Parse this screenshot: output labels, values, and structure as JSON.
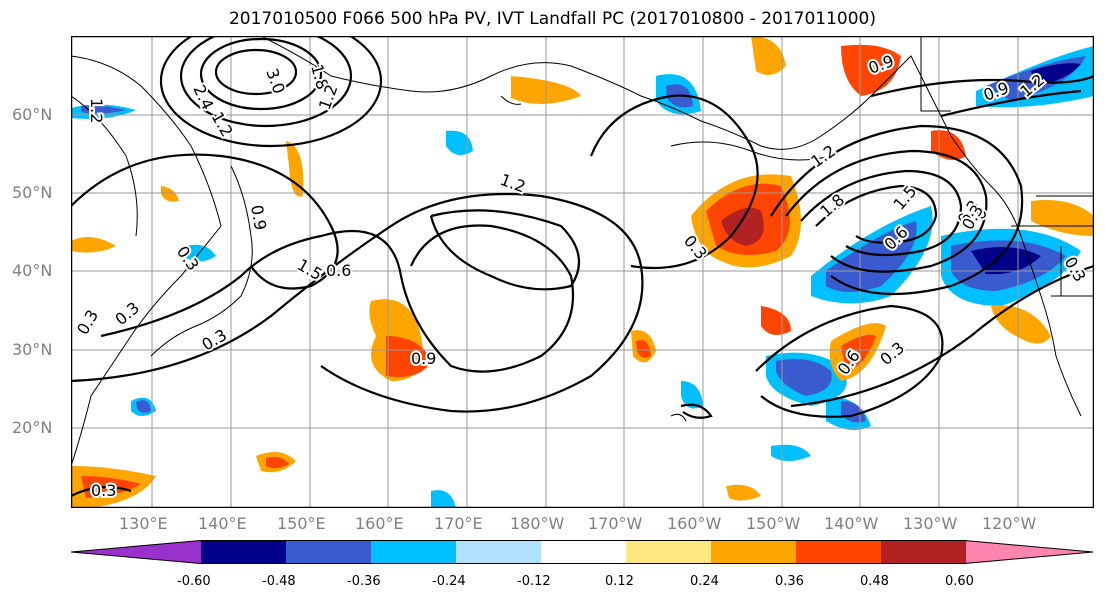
{
  "title": "2017010500 F066 500 hPa PV, IVT Landfall PC (2017010800 - 2017011000)",
  "lat_labels": [
    "60°N",
    "50°N",
    "40°N",
    "30°N",
    "20°N"
  ],
  "lon_labels": [
    "130°E",
    "140°E",
    "150°E",
    "160°E",
    "170°E",
    "180°W",
    "170°W",
    "160°W",
    "150°W",
    "140°W",
    "130°W",
    "120°W"
  ],
  "contour_labels": [
    "1.2",
    "2.4",
    "3.0",
    "1.8",
    "1.2",
    "1.2",
    "0.9",
    "0.3",
    "0.6",
    "1.2",
    "1.5",
    "0.3",
    "0.3",
    "0.9",
    "0.3",
    "0.9",
    "0.6",
    "0.3",
    "0.3",
    "1.2",
    "1.8",
    "1.5",
    "0.6",
    "0.3",
    "0.9",
    "1.2",
    "0.6",
    "0.3",
    "0.3",
    "0.3"
  ],
  "colorbar": {
    "colors": [
      "#9932CC",
      "#00008B",
      "#3A5BD0",
      "#00BFFF",
      "#B0E0FF",
      "#FFFFFF",
      "#FFE680",
      "#FFA500",
      "#FF4500",
      "#B22222",
      "#FF85B0"
    ],
    "tick_labels": [
      "-0.60",
      "-0.48",
      "-0.36",
      "-0.24",
      "-0.12",
      "0.12",
      "0.24",
      "0.36",
      "0.48",
      "0.60"
    ]
  }
}
